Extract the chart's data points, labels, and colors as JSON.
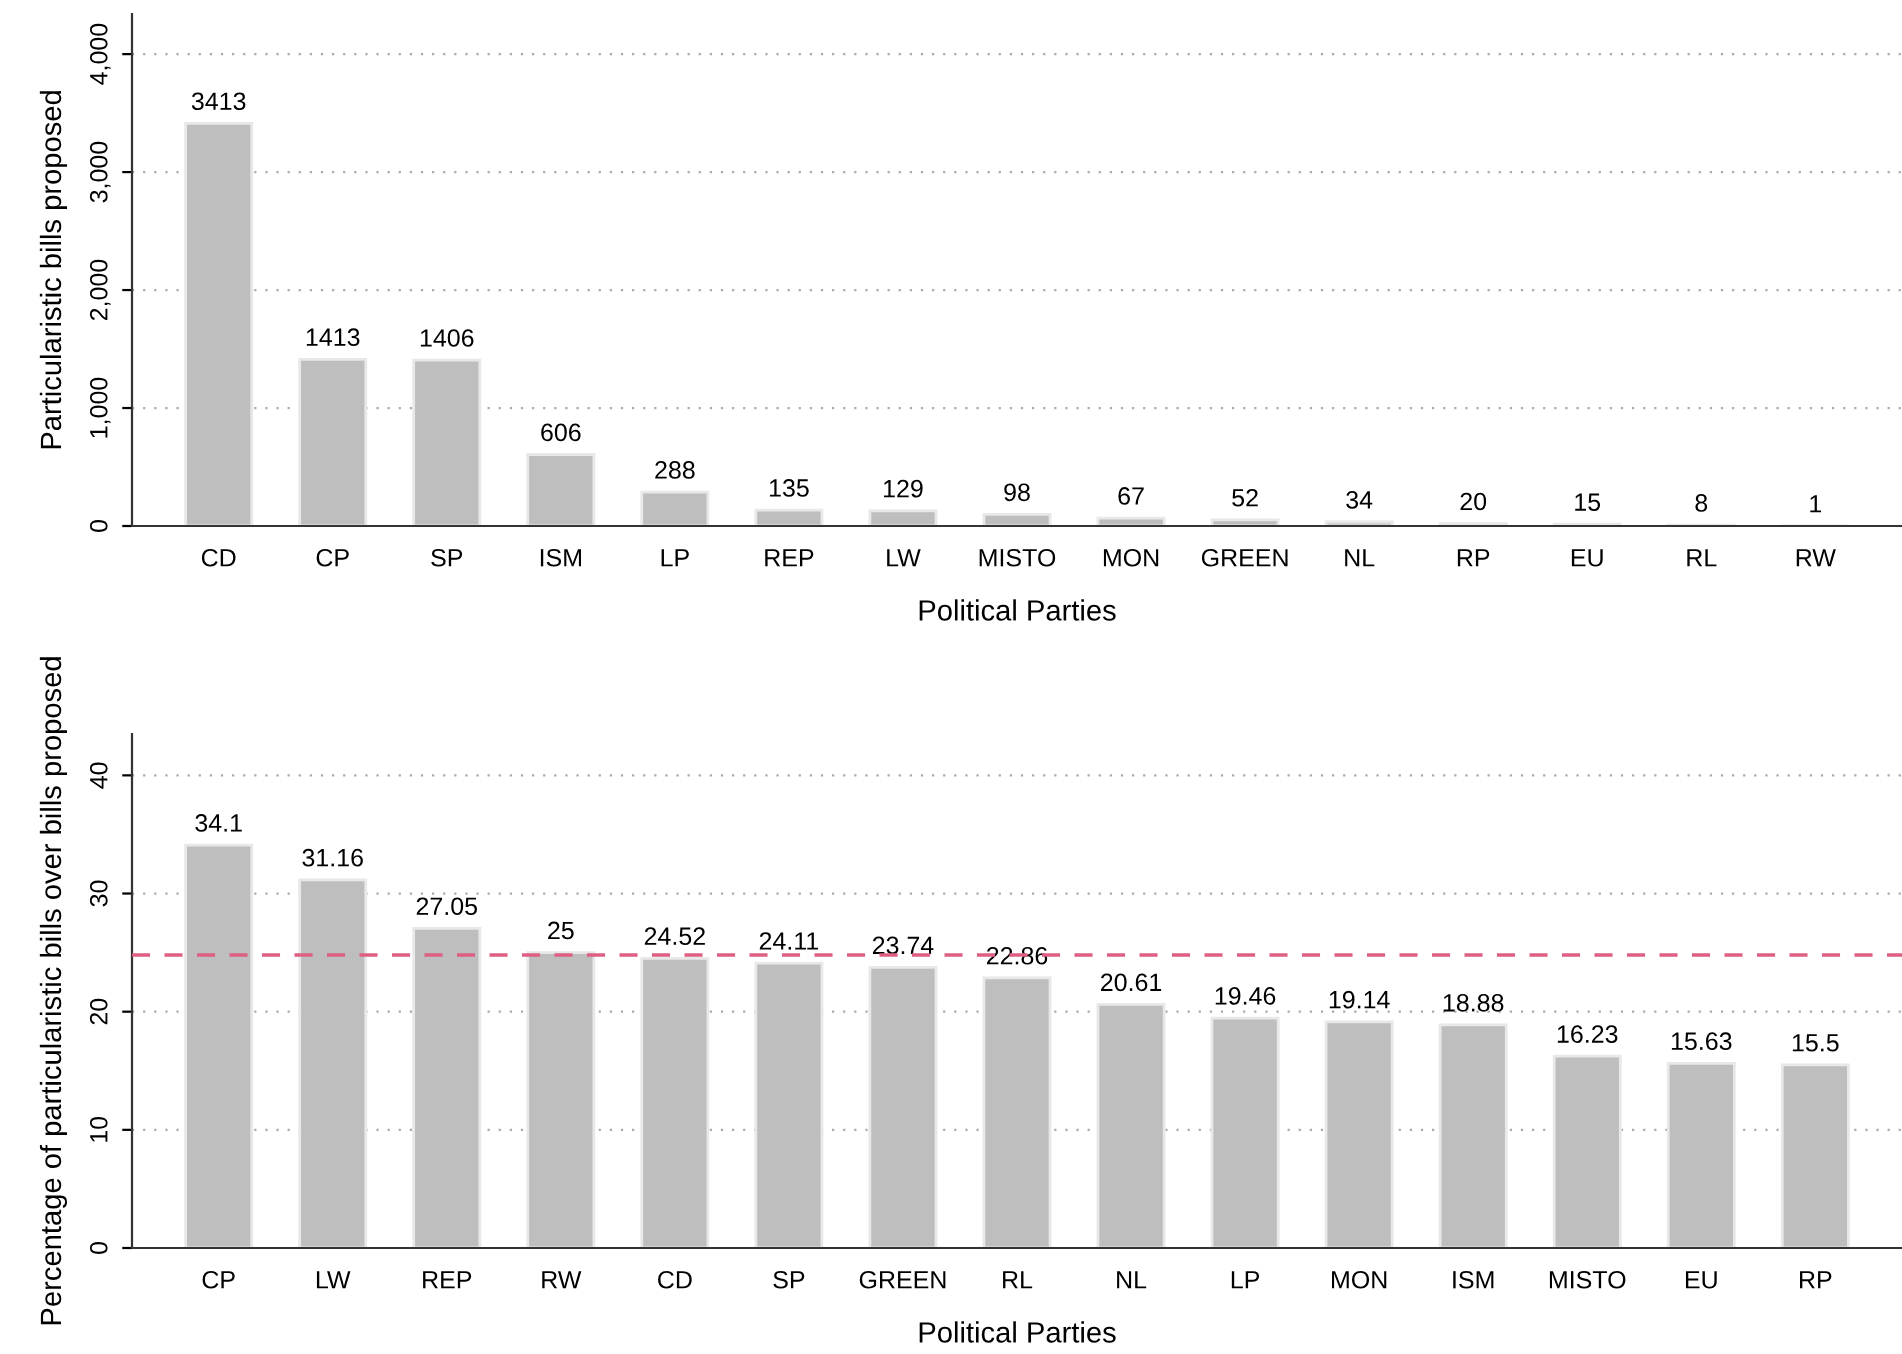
{
  "chart_data": [
    {
      "type": "bar",
      "xlabel": "Political Parties",
      "ylabel": "Particularistic bills proposed",
      "categories": [
        "CD",
        "CP",
        "SP",
        "ISM",
        "LP",
        "REP",
        "LW",
        "MISTO",
        "MON",
        "GREEN",
        "NL",
        "RP",
        "EU",
        "RL",
        "RW"
      ],
      "values": [
        3413,
        1413,
        1406,
        606,
        288,
        135,
        129,
        98,
        67,
        52,
        34,
        20,
        15,
        8,
        1
      ],
      "color": "#bebebe",
      "data_labels": true,
      "grid": "y",
      "legend": false,
      "ylim": [
        0,
        4340
      ],
      "yticks": [
        0,
        {
          "value": 1000,
          "label": "1,000"
        },
        {
          "value": 2000,
          "label": "2,000"
        },
        {
          "value": 3000,
          "label": "3,000"
        },
        {
          "value": 4000,
          "label": "4,000"
        }
      ]
    },
    {
      "type": "bar",
      "xlabel": "Political Parties",
      "ylabel": "Percentage of particularistic bills over bills proposed",
      "categories": [
        "CP",
        "LW",
        "REP",
        "RW",
        "CD",
        "SP",
        "GREEN",
        "RL",
        "NL",
        "LP",
        "MON",
        "ISM",
        "MISTO",
        "EU",
        "RP"
      ],
      "values": [
        34.1,
        31.16,
        27.05,
        25,
        24.52,
        24.11,
        23.74,
        22.86,
        20.61,
        19.46,
        19.14,
        18.88,
        16.23,
        15.63,
        15.5
      ],
      "color": "#bebebe",
      "data_labels": true,
      "grid": "y",
      "legend": false,
      "ylim": [
        0,
        43.5
      ],
      "yticks": [
        0,
        10,
        20,
        30,
        40
      ],
      "ref_lines": [
        {
          "axis": "y",
          "value": 24.8,
          "color": "#df5f82",
          "line_style": "dashed"
        }
      ]
    }
  ]
}
